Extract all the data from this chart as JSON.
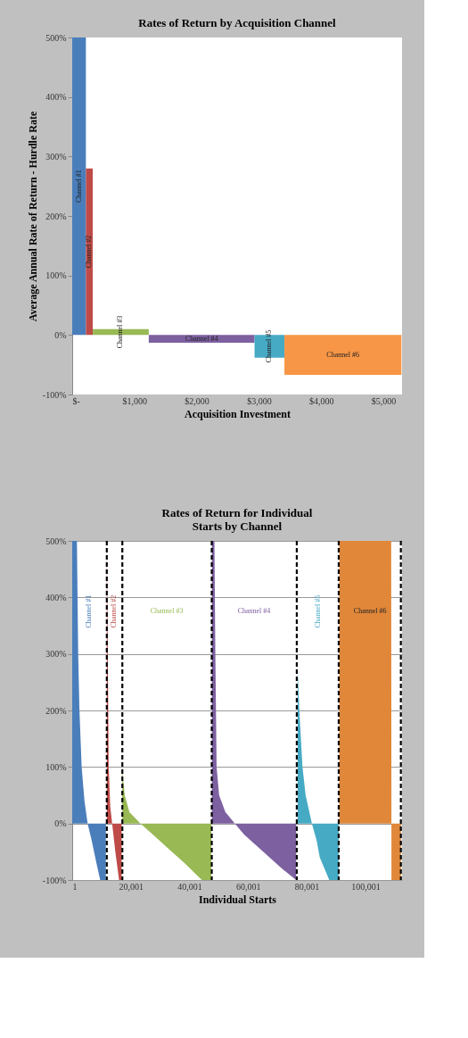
{
  "chart_data": [
    {
      "type": "area",
      "title": "Rates of Return by Acquisition Channel",
      "xlabel": "Acquisition Investment",
      "ylabel": "Average Annual Rate of Return - Hurdle Rate",
      "series": [
        {
          "name": "Channel #1",
          "color": "#4a7ebb",
          "x": [
            0,
            220
          ],
          "values": [
            500,
            500
          ]
        },
        {
          "name": "Channel #2",
          "color": "#be4b48",
          "x": [
            220,
            330
          ],
          "values": [
            280,
            280
          ]
        },
        {
          "name": "Channel #3",
          "color": "#98b954",
          "x": [
            330,
            1230
          ],
          "values": [
            10,
            10
          ]
        },
        {
          "name": "Channel #4",
          "color": "#7d60a0",
          "x": [
            1230,
            2930
          ],
          "values": [
            -13,
            -13
          ]
        },
        {
          "name": "Channel #5",
          "color": "#46aac5",
          "x": [
            2930,
            3410
          ],
          "values": [
            -38,
            -38
          ]
        },
        {
          "name": "Channel #6",
          "color": "#f79646",
          "x": [
            3410,
            5290
          ],
          "values": [
            -67,
            -67
          ]
        }
      ],
      "xlim": [
        0,
        5300
      ],
      "xticks": [
        {
          "value": 0,
          "label": "$-"
        },
        {
          "value": 1000,
          "label": "$1,000"
        },
        {
          "value": 2000,
          "label": "$2,000"
        },
        {
          "value": 3000,
          "label": "$3,000"
        },
        {
          "value": 4000,
          "label": "$4,000"
        },
        {
          "value": 5000,
          "label": "$5,000"
        }
      ],
      "ylim": [
        -100,
        500
      ],
      "yticks": [
        {
          "value": -100,
          "label": "-100%"
        },
        {
          "value": 0,
          "label": "0%"
        },
        {
          "value": 100,
          "label": "100%"
        },
        {
          "value": 200,
          "label": "200%"
        },
        {
          "value": 300,
          "label": "300%"
        },
        {
          "value": 400,
          "label": "400%"
        },
        {
          "value": 500,
          "label": "500%"
        }
      ],
      "legend": false
    },
    {
      "type": "area",
      "title": "Rates of Return for Individual Starts by Channel",
      "xlabel": "Individual Starts",
      "series": [
        {
          "name": "Channel #1",
          "color": "#4a7ebb",
          "x": [
            1,
            1610,
            2040,
            2470,
            3220,
            4180,
            5260,
            6650,
            8260,
            9550,
            11480
          ],
          "values": [
            500,
            500,
            300,
            200,
            100,
            40,
            0,
            -30,
            -70,
            -100,
            -100
          ]
        },
        {
          "name": "Channel #2",
          "color": "#be4b48",
          "x": [
            11800,
            12120,
            12450,
            12980,
            13630,
            14700,
            15990,
            16850
          ],
          "values": [
            500,
            300,
            100,
            30,
            0,
            -50,
            -100,
            -100
          ]
        },
        {
          "name": "Channel #3",
          "color": "#98b954",
          "x": [
            17060,
            17920,
            19530,
            23290,
            27580,
            32940,
            38310,
            44210,
            47430
          ],
          "values": [
            95,
            50,
            20,
            0,
            -20,
            -45,
            -70,
            -100,
            -100
          ]
        },
        {
          "name": "Channel #4",
          "color": "#7d60a0",
          "x": [
            47640,
            48500,
            48820,
            49250,
            50110,
            52260,
            55480,
            58700,
            65140,
            71570,
            76400
          ],
          "values": [
            500,
            500,
            300,
            100,
            50,
            20,
            0,
            -20,
            -50,
            -80,
            -100
          ]
        },
        {
          "name": "Channel #5",
          "color": "#46aac5",
          "x": [
            76930,
            77470,
            78540,
            79620,
            81760,
            83370,
            84450,
            86060,
            87670,
            90880
          ],
          "values": [
            270,
            200,
            100,
            50,
            0,
            -30,
            -60,
            -80,
            -100,
            -100
          ]
        },
        {
          "name": "Channel #6",
          "color": "#e0873a",
          "x": [
            91100,
            108800,
            108900,
            112130
          ],
          "values": [
            500,
            500,
            -100,
            -100
          ]
        }
      ],
      "ref_lines": [
        {
          "axis": "x",
          "value": 11800,
          "color": "#000000",
          "line_style": "dashed"
        },
        {
          "axis": "x",
          "value": 17100,
          "color": "#000000",
          "line_style": "dashed"
        },
        {
          "axis": "x",
          "value": 47600,
          "color": "#000000",
          "line_style": "dashed"
        },
        {
          "axis": "x",
          "value": 76600,
          "color": "#000000",
          "line_style": "dashed"
        },
        {
          "axis": "x",
          "value": 90900,
          "color": "#000000",
          "line_style": "dashed"
        },
        {
          "axis": "x",
          "value": 112100,
          "color": "#000000",
          "line_style": "dashed"
        }
      ],
      "xlim": [
        1,
        112500
      ],
      "xticks": [
        1,
        {
          "value": 20001,
          "label": "20,001"
        },
        {
          "value": 40001,
          "label": "40,001"
        },
        {
          "value": 60001,
          "label": "60,001"
        },
        {
          "value": 80001,
          "label": "80,001"
        },
        {
          "value": 100001,
          "label": "100,001"
        }
      ],
      "ylim": [
        -100,
        500
      ],
      "yticks": [
        {
          "value": -100,
          "label": "-100%"
        },
        {
          "value": 0,
          "label": "0%"
        },
        {
          "value": 100,
          "label": "100%"
        },
        {
          "value": 200,
          "label": "200%"
        },
        {
          "value": 300,
          "label": "300%"
        },
        {
          "value": 400,
          "label": "400%"
        },
        {
          "value": 500,
          "label": "500%"
        }
      ],
      "grid": "y",
      "legend": false
    }
  ]
}
